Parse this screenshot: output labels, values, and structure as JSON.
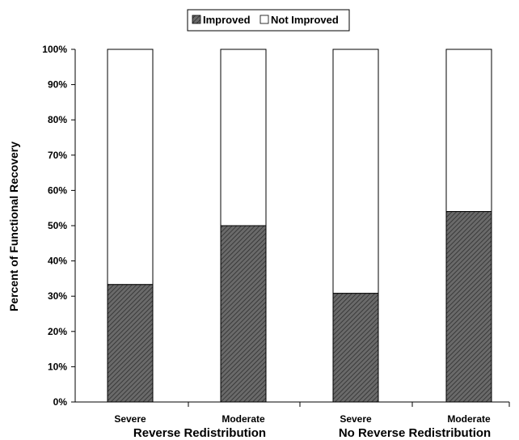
{
  "chart_data": {
    "type": "bar",
    "stacked": true,
    "categories": [
      "Severe",
      "Moderate",
      "Severe",
      "Moderate"
    ],
    "groups": [
      {
        "label": "Reverse Redistribution",
        "categories": [
          "Severe",
          "Moderate"
        ]
      },
      {
        "label": "No Reverse Redistribution",
        "categories": [
          "Severe",
          "Moderate"
        ]
      }
    ],
    "series": [
      {
        "name": "Improved",
        "values": [
          33.3,
          50,
          30.8,
          54
        ],
        "color": "#555555",
        "pattern": "diagonal-hatch"
      },
      {
        "name": "Not Improved",
        "values": [
          66.7,
          50,
          69.2,
          46
        ],
        "color": "#ffffff"
      }
    ],
    "ylabel": "Percent of Functional Recovery",
    "xlabel": "",
    "ylim": [
      0,
      100
    ],
    "y_ticks": [
      "0%",
      "10%",
      "20%",
      "30%",
      "40%",
      "50%",
      "60%",
      "70%",
      "80%",
      "90%",
      "100%"
    ],
    "grid": false,
    "legend_position": "top-center"
  }
}
